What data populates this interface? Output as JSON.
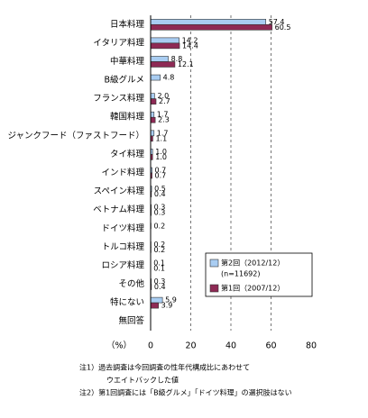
{
  "chart_data": {
    "type": "hbar",
    "x_label": "（%）",
    "categories": [
      "日本料理",
      "イタリア料理",
      "中華料理",
      "B級グルメ",
      "フランス料理",
      "韓国料理",
      "ジャンクフード（ファストフード）",
      "タイ料理",
      "インド料理",
      "スペイン料理",
      "ベトナム料理",
      "ドイツ料理",
      "トルコ料理",
      "ロシア料理",
      "その他",
      "特にない",
      "無回答"
    ],
    "series": [
      {
        "name": "第2回（2012/12）",
        "note": "(n=11692)",
        "color": "#a9cdf2",
        "values": [
          57.4,
          14.2,
          8.8,
          4.8,
          2.0,
          1.7,
          1.7,
          1.0,
          0.7,
          0.5,
          0.3,
          0.2,
          0.2,
          0.1,
          0.3,
          5.9,
          null
        ],
        "value_labels": [
          "57.4",
          "14.2",
          "8.8",
          "4.8",
          "2.0",
          "1.7",
          "1.7",
          "1.0",
          "0.7",
          "0.5",
          "0.3",
          "0.2",
          "0.2",
          "0.1",
          "0.3",
          "5.9",
          null
        ]
      },
      {
        "name": "第1回（2007/12）",
        "color": "#8e2a55",
        "values": [
          60.5,
          14.4,
          12.1,
          null,
          2.7,
          2.3,
          1.1,
          1.0,
          0.7,
          0.4,
          0.3,
          null,
          0.2,
          0.1,
          0.4,
          3.9,
          null
        ],
        "value_labels": [
          "60.5",
          "14.4",
          "12.1",
          null,
          "2.7",
          "2.3",
          "1.1",
          "1.0",
          "0.7",
          "0.4",
          "0.3",
          null,
          "0.2",
          "0.1",
          "0.4",
          "3.9",
          null
        ]
      }
    ],
    "xlim": [
      0,
      80
    ],
    "xticks": [
      0,
      20,
      40,
      60,
      80
    ],
    "grid": true,
    "notes": [
      "注1）過去調査は今回調査の性年代構成比にあわせて",
      "ウエイトバックした値",
      "注2）第1回調査には「B級グルメ」「ドイツ料理」の選択肢はない"
    ]
  }
}
